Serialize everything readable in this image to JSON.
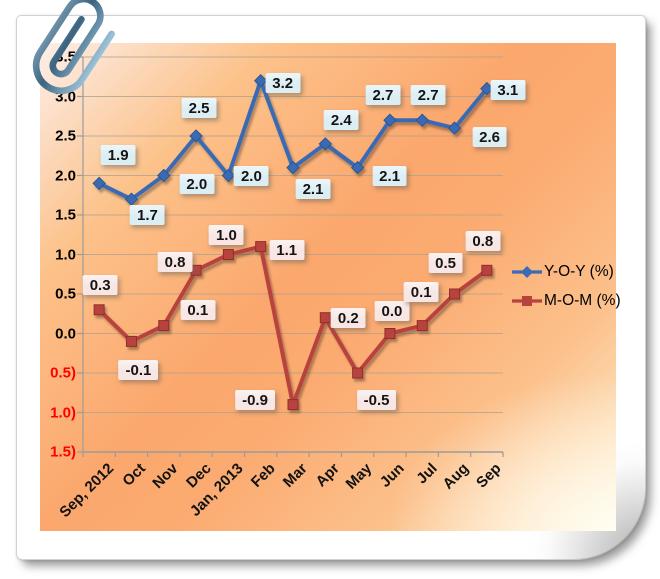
{
  "colors": {
    "grid": "#b3a28e",
    "axis": "#9b9b9b",
    "tick_label": "#000000",
    "negative_tick_label": "#fe0000",
    "page_background": "#ffffff",
    "plot_gradient_center": "#fba76d",
    "plot_gradient_corner_tl": "#fdefe9",
    "plot_gradient_corner_br": "#fdf5e2"
  },
  "chart_data": {
    "type": "line",
    "title": "",
    "xlabel": "",
    "ylabel": "",
    "grid": true,
    "legend_position": "right",
    "ylim": [
      -1.5,
      3.5
    ],
    "y_ticks": [
      {
        "label": "3.5",
        "value": 3.5
      },
      {
        "label": "3.0",
        "value": 3.0
      },
      {
        "label": "2.5",
        "value": 2.5
      },
      {
        "label": "2.0",
        "value": 2.0
      },
      {
        "label": "1.5",
        "value": 1.5
      },
      {
        "label": "1.0",
        "value": 1.0
      },
      {
        "label": "0.5",
        "value": 0.5
      },
      {
        "label": "0.0",
        "value": 0.0
      },
      {
        "label": "0.5)",
        "value": -0.5
      },
      {
        "label": "1.0)",
        "value": -1.0
      },
      {
        "label": "1.5)",
        "value": -1.5
      }
    ],
    "categories": [
      "Sep, 2012",
      "Oct",
      "Nov",
      "Dec",
      "Jan, 2013",
      "Feb",
      "Mar",
      "Apr",
      "May",
      "Jun",
      "Jul",
      "Aug",
      "Sep"
    ],
    "series": [
      {
        "name": "Y-O-Y (%)",
        "color": "#3a6bb5",
        "marker": "diamond",
        "marker_stroke": "#2c568f",
        "label_bg": "#dbeef4",
        "values": [
          1.9,
          1.7,
          2.0,
          2.5,
          2.0,
          3.2,
          2.1,
          2.4,
          2.1,
          2.7,
          2.7,
          2.6,
          3.1
        ],
        "labels": [
          "1.9",
          "1.7",
          "2.0",
          "2.5",
          "2.0",
          "3.2",
          "2.1",
          "2.4",
          "2.1",
          "2.7",
          "2.7",
          "2.6",
          "3.1"
        ],
        "label_offsets": [
          [
            19,
            -28
          ],
          [
            16,
            16
          ],
          [
            33,
            8
          ],
          [
            3,
            -28
          ],
          [
            23,
            0
          ],
          [
            22,
            2
          ],
          [
            20,
            21
          ],
          [
            16,
            -24
          ],
          [
            32,
            8
          ],
          [
            -7,
            -25
          ],
          [
            6,
            -25
          ],
          [
            35,
            9
          ],
          [
            21,
            1
          ]
        ]
      },
      {
        "name": "M-O-M (%)",
        "color": "#b8423e",
        "marker": "square",
        "marker_stroke": "#8f2f2c",
        "label_bg": "#f7e6e4",
        "values": [
          0.3,
          -0.1,
          0.1,
          0.8,
          1.0,
          1.1,
          -0.9,
          0.2,
          -0.5,
          0.0,
          0.1,
          0.5,
          0.8
        ],
        "labels": [
          "0.3",
          "-0.1",
          "0.1",
          "0.8",
          "1.0",
          "1.1",
          "-0.9",
          "0.2",
          "-0.5",
          "0.0",
          "0.1",
          "0.5",
          "0.8"
        ],
        "label_offsets": [
          [
            1,
            -25
          ],
          [
            7,
            29
          ],
          [
            34,
            -16
          ],
          [
            -21,
            -8
          ],
          [
            -2,
            -20
          ],
          [
            26,
            3
          ],
          [
            -38,
            -5
          ],
          [
            23,
            0
          ],
          [
            19,
            27
          ],
          [
            2,
            -23
          ],
          [
            -1,
            -34
          ],
          [
            -9,
            -31
          ],
          [
            -4,
            -29
          ]
        ]
      }
    ]
  }
}
